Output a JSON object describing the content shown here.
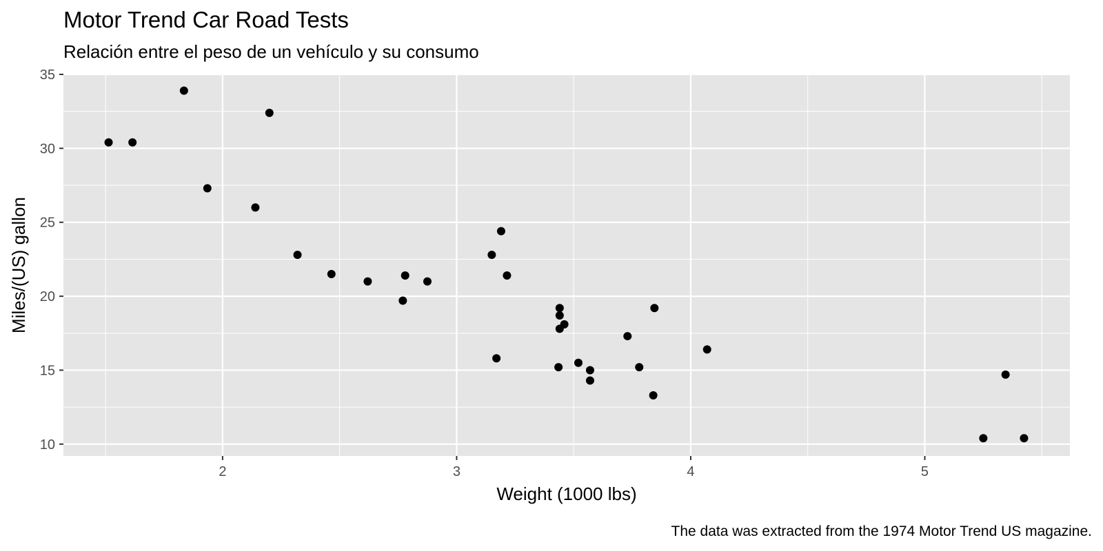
{
  "chart_data": {
    "type": "scatter",
    "title": "Motor Trend Car Road Tests",
    "subtitle": "Relación entre el peso de un vehículo y su consumo",
    "xlabel": "Weight (1000 lbs)",
    "ylabel": "Miles/(US) gallon",
    "caption": "The data was extracted from the 1974 Motor Trend US magazine.",
    "xlim": [
      1.32,
      5.62
    ],
    "ylim": [
      9.2,
      35.0
    ],
    "x_ticks": [
      2,
      3,
      4,
      5
    ],
    "y_ticks": [
      10,
      15,
      20,
      25,
      30,
      35
    ],
    "grid": true,
    "background": "#e5e5e5",
    "grid_color": "#ffffff",
    "point_color": "#000000",
    "points": [
      {
        "x": 2.62,
        "y": 21.0
      },
      {
        "x": 2.875,
        "y": 21.0
      },
      {
        "x": 2.32,
        "y": 22.8
      },
      {
        "x": 3.215,
        "y": 21.4
      },
      {
        "x": 3.44,
        "y": 18.7
      },
      {
        "x": 3.46,
        "y": 18.1
      },
      {
        "x": 3.57,
        "y": 14.3
      },
      {
        "x": 3.19,
        "y": 24.4
      },
      {
        "x": 3.15,
        "y": 22.8
      },
      {
        "x": 3.44,
        "y": 19.2
      },
      {
        "x": 3.44,
        "y": 17.8
      },
      {
        "x": 4.07,
        "y": 16.4
      },
      {
        "x": 3.73,
        "y": 17.3
      },
      {
        "x": 3.78,
        "y": 15.2
      },
      {
        "x": 5.25,
        "y": 10.4
      },
      {
        "x": 5.424,
        "y": 10.4
      },
      {
        "x": 5.345,
        "y": 14.7
      },
      {
        "x": 2.2,
        "y": 32.4
      },
      {
        "x": 1.615,
        "y": 30.4
      },
      {
        "x": 1.835,
        "y": 33.9
      },
      {
        "x": 2.465,
        "y": 21.5
      },
      {
        "x": 3.52,
        "y": 15.5
      },
      {
        "x": 3.435,
        "y": 15.2
      },
      {
        "x": 3.84,
        "y": 13.3
      },
      {
        "x": 3.845,
        "y": 19.2
      },
      {
        "x": 1.935,
        "y": 27.3
      },
      {
        "x": 2.14,
        "y": 26.0
      },
      {
        "x": 1.513,
        "y": 30.4
      },
      {
        "x": 3.17,
        "y": 15.8
      },
      {
        "x": 2.77,
        "y": 19.7
      },
      {
        "x": 3.57,
        "y": 15.0
      },
      {
        "x": 2.78,
        "y": 21.4
      }
    ]
  }
}
